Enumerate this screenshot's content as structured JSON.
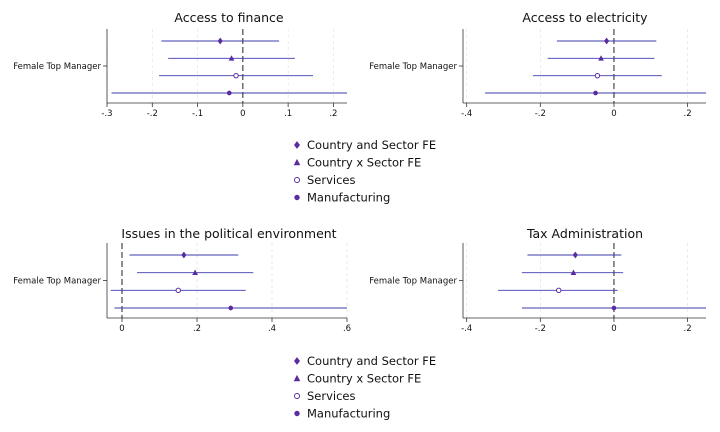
{
  "row_label": "Female Top Manager",
  "colors": {
    "marker": "#5a2ca0",
    "ci_line": "#3b3bb0",
    "zero_line": "#222222",
    "grid": "#dddddd"
  },
  "legend": [
    {
      "label": "Country and Sector FE",
      "marker": "diamond"
    },
    {
      "label": "Country x Sector FE",
      "marker": "triangle"
    },
    {
      "label": "Services",
      "marker": "hollow-circle"
    },
    {
      "label": "Manufacturing",
      "marker": "circle"
    }
  ],
  "chart_data": [
    {
      "type": "scatter",
      "title": "Access to finance",
      "xlim": [
        -0.3,
        0.23
      ],
      "ticks": [
        -0.3,
        -0.2,
        -0.1,
        0,
        0.1,
        0.2
      ],
      "tick_labels": [
        "-.3",
        "-.2",
        "-.1",
        "0",
        ".1",
        ".2"
      ],
      "series": [
        {
          "name": "Country and Sector FE",
          "estimate": -0.05,
          "ci": [
            -0.18,
            0.08
          ]
        },
        {
          "name": "Country x Sector FE",
          "estimate": -0.025,
          "ci": [
            -0.165,
            0.115
          ]
        },
        {
          "name": "Services",
          "estimate": -0.015,
          "ci": [
            -0.185,
            0.155
          ]
        },
        {
          "name": "Manufacturing",
          "estimate": -0.03,
          "ci": [
            -0.29,
            0.23
          ]
        }
      ]
    },
    {
      "type": "scatter",
      "title": "Access to electricity",
      "xlim": [
        -0.41,
        0.25
      ],
      "ticks": [
        -0.4,
        -0.2,
        0,
        0.2
      ],
      "tick_labels": [
        "-.4",
        "-.2",
        "0",
        ".2"
      ],
      "series": [
        {
          "name": "Country and Sector FE",
          "estimate": -0.02,
          "ci": [
            -0.155,
            0.115
          ]
        },
        {
          "name": "Country x Sector FE",
          "estimate": -0.035,
          "ci": [
            -0.18,
            0.11
          ]
        },
        {
          "name": "Services",
          "estimate": -0.045,
          "ci": [
            -0.22,
            0.13
          ]
        },
        {
          "name": "Manufacturing",
          "estimate": -0.05,
          "ci": [
            -0.35,
            0.25
          ]
        }
      ]
    },
    {
      "type": "scatter",
      "title": "Issues in the political environment",
      "xlim": [
        -0.04,
        0.6
      ],
      "ticks": [
        0,
        0.2,
        0.4,
        0.6
      ],
      "tick_labels": [
        "0",
        ".2",
        ".4",
        ".6"
      ],
      "series": [
        {
          "name": "Country and Sector FE",
          "estimate": 0.165,
          "ci": [
            0.02,
            0.31
          ]
        },
        {
          "name": "Country x Sector FE",
          "estimate": 0.195,
          "ci": [
            0.04,
            0.35
          ]
        },
        {
          "name": "Services",
          "estimate": 0.15,
          "ci": [
            -0.03,
            0.33
          ]
        },
        {
          "name": "Manufacturing",
          "estimate": 0.29,
          "ci": [
            -0.02,
            0.6
          ]
        }
      ]
    },
    {
      "type": "scatter",
      "title": "Tax Administration",
      "xlim": [
        -0.41,
        0.25
      ],
      "ticks": [
        -0.4,
        -0.2,
        0,
        0.2
      ],
      "tick_labels": [
        "-.4",
        "-.2",
        "0",
        ".2"
      ],
      "series": [
        {
          "name": "Country and Sector FE",
          "estimate": -0.105,
          "ci": [
            -0.235,
            0.02
          ]
        },
        {
          "name": "Country x Sector FE",
          "estimate": -0.11,
          "ci": [
            -0.25,
            0.025
          ]
        },
        {
          "name": "Services",
          "estimate": -0.15,
          "ci": [
            -0.315,
            0.01
          ]
        },
        {
          "name": "Manufacturing",
          "estimate": 0.0,
          "ci": [
            -0.25,
            0.25
          ]
        }
      ]
    }
  ]
}
